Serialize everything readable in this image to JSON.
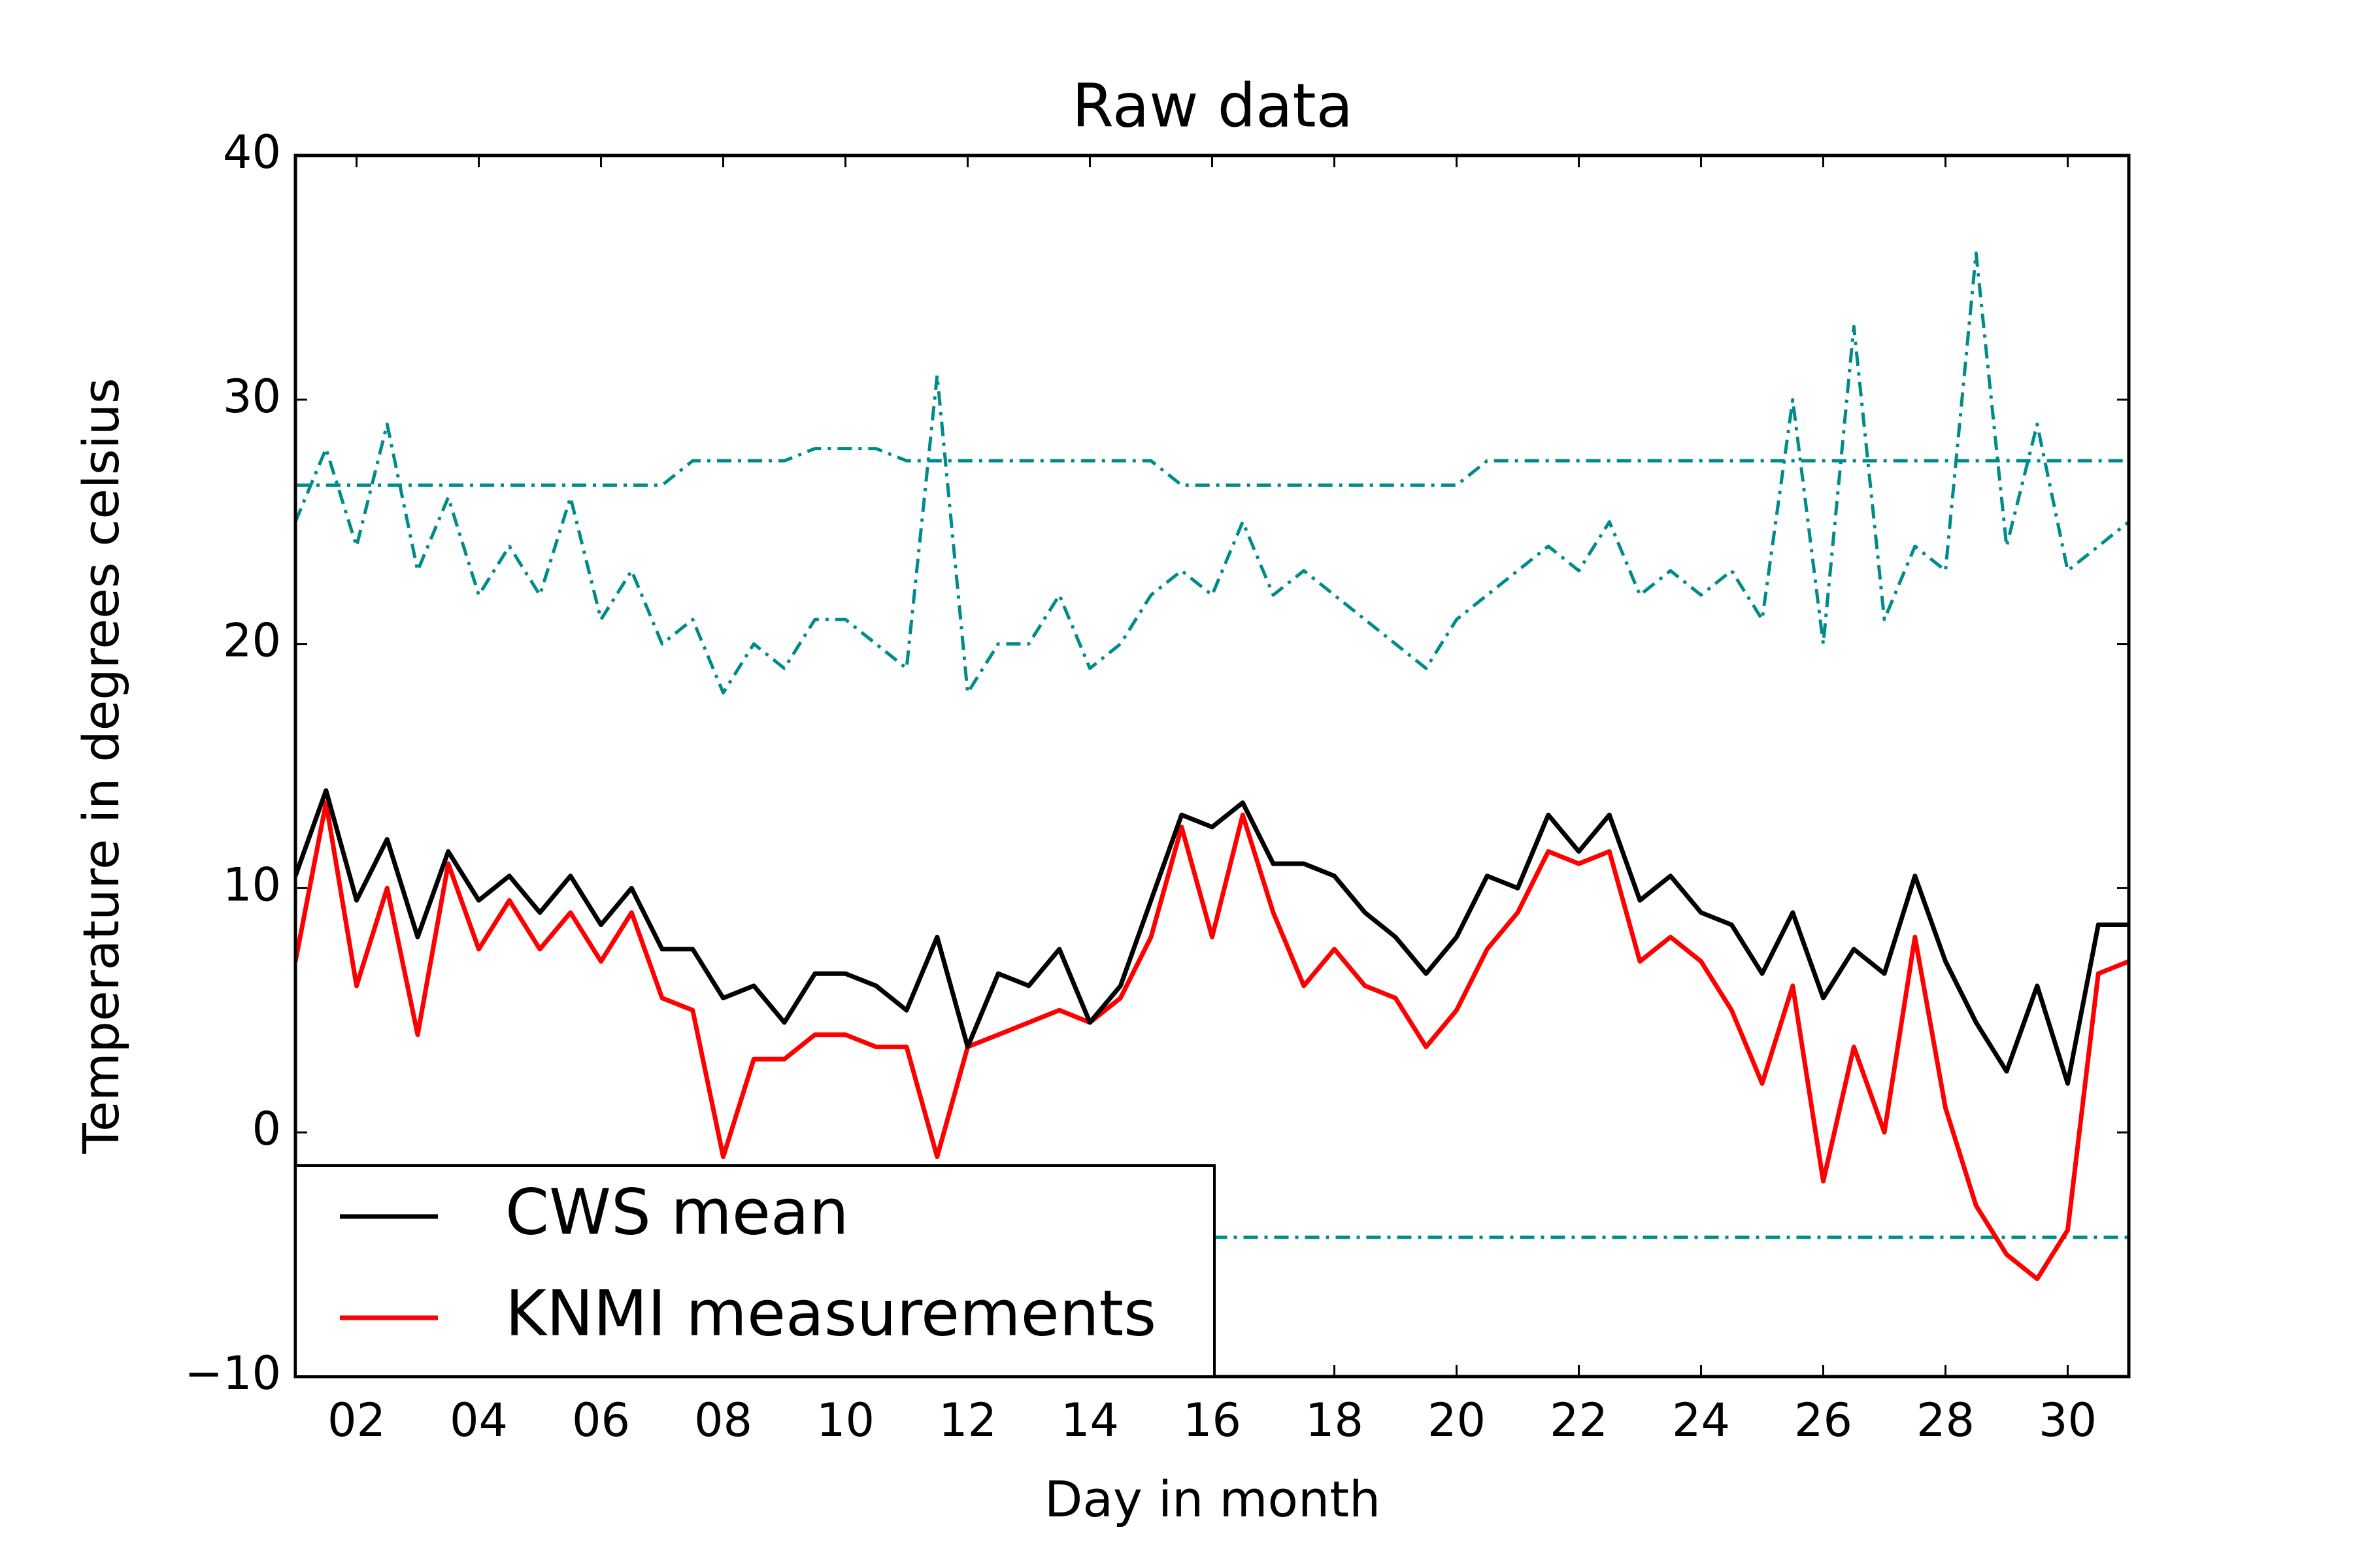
{
  "chart_data": {
    "type": "line",
    "title": "Raw data",
    "xlabel": "Day in month",
    "ylabel": "Temperature in degrees celsius",
    "xlim": [
      1,
      31
    ],
    "ylim": [
      -10,
      40
    ],
    "xticks": [
      {
        "value": 2,
        "label": "02"
      },
      {
        "value": 4,
        "label": "04"
      },
      {
        "value": 6,
        "label": "06"
      },
      {
        "value": 8,
        "label": "08"
      },
      {
        "value": 10,
        "label": "10"
      },
      {
        "value": 12,
        "label": "12"
      },
      {
        "value": 14,
        "label": "14"
      },
      {
        "value": 16,
        "label": "16"
      },
      {
        "value": 18,
        "label": "18"
      },
      {
        "value": 20,
        "label": "20"
      },
      {
        "value": 22,
        "label": "22"
      },
      {
        "value": 24,
        "label": "24"
      },
      {
        "value": 26,
        "label": "26"
      },
      {
        "value": 28,
        "label": "28"
      },
      {
        "value": 30,
        "label": "30"
      }
    ],
    "yticks": [
      {
        "value": -10,
        "label": "−10"
      },
      0,
      10,
      20,
      30,
      40
    ],
    "legend": "lower left",
    "x": [
      1,
      1.5,
      2,
      2.5,
      3,
      3.5,
      4,
      4.5,
      5,
      5.5,
      6,
      6.5,
      7,
      7.5,
      8,
      8.5,
      9,
      9.5,
      10,
      10.5,
      11,
      11.5,
      12,
      12.5,
      13,
      13.5,
      14,
      14.5,
      15,
      15.5,
      16,
      16.5,
      17,
      17.5,
      18,
      18.5,
      19,
      19.5,
      20,
      20.5,
      21,
      21.5,
      22,
      22.5,
      23,
      23.5,
      24,
      24.5,
      25,
      25.5,
      26,
      26.5,
      27,
      27.5,
      28,
      28.5,
      29,
      29.5,
      30,
      30.5,
      31
    ],
    "series": [
      {
        "color": "#008b8b",
        "style": "dashdot",
        "values": [
          26.5,
          26.5,
          26.5,
          26.5,
          26.5,
          26.5,
          26.5,
          26.5,
          26.5,
          26.5,
          26.5,
          26.5,
          26.5,
          27.5,
          27.5,
          27.5,
          27.5,
          28,
          28,
          28,
          27.5,
          27.5,
          27.5,
          27.5,
          27.5,
          27.5,
          27.5,
          27.5,
          27.5,
          26.5,
          26.5,
          26.5,
          26.5,
          26.5,
          26.5,
          26.5,
          26.5,
          26.5,
          26.5,
          27.5,
          27.5,
          27.5,
          27.5,
          27.5,
          27.5,
          27.5,
          27.5,
          27.5,
          27.5,
          27.5,
          27.5,
          27.5,
          27.5,
          27.5,
          27.5,
          27.5,
          27.5,
          27.5,
          27.5,
          27.5,
          27.5
        ]
      },
      {
        "color": "#008b8b",
        "style": "dashdot",
        "values": [
          25,
          28,
          24,
          29,
          23,
          26,
          22,
          24,
          22,
          26,
          21,
          23,
          20,
          21,
          18,
          20,
          19,
          21,
          21,
          20,
          19,
          31,
          18,
          20,
          20,
          22,
          19,
          20,
          22,
          23,
          22,
          25,
          22,
          23,
          22,
          21,
          20,
          19,
          21,
          22,
          23,
          24,
          23,
          25,
          22,
          23,
          22,
          23,
          21,
          30,
          20,
          33,
          21,
          24,
          23,
          36,
          24,
          29,
          23,
          24,
          25
        ]
      },
      {
        "color": "#008b8b",
        "style": "dashdot",
        "values": [
          null,
          null,
          null,
          null,
          null,
          null,
          null,
          null,
          null,
          null,
          null,
          null,
          null,
          null,
          null,
          null,
          null,
          null,
          null,
          null,
          null,
          null,
          null,
          null,
          null,
          null,
          -4.3,
          -4.3,
          -4.3,
          -4.3,
          -4.3,
          -4.3,
          -4.3,
          -4.3,
          -4.3,
          -4.3,
          -4.3,
          -4.3,
          -4.3,
          -4.3,
          -4.3,
          -4.3,
          -4.3,
          -4.3,
          -4.3,
          -4.3,
          -4.3,
          -4.3,
          -4.3,
          -4.3,
          -4.3,
          -4.3,
          -4.3,
          -4.3,
          -4.3,
          -4.3,
          -4.3,
          -4.3,
          -4.3,
          -4.3,
          -4.3
        ]
      },
      {
        "name": "CWS mean",
        "color": "#000000",
        "values": [
          10.5,
          14,
          9.5,
          12,
          8,
          11.5,
          9.5,
          10.5,
          9,
          10.5,
          8.5,
          10,
          7.5,
          7.5,
          5.5,
          6,
          4.5,
          6.5,
          6.5,
          6,
          5,
          8,
          3.5,
          6.5,
          6,
          7.5,
          4.5,
          6,
          9.5,
          13,
          12.5,
          13.5,
          11,
          11,
          10.5,
          9,
          8,
          6.5,
          8,
          10.5,
          10,
          13,
          11.5,
          13,
          9.5,
          10.5,
          9,
          8.5,
          6.5,
          9,
          5.5,
          7.5,
          6.5,
          10.5,
          7,
          4.5,
          2.5,
          6,
          2,
          8.5,
          8.5
        ]
      },
      {
        "name": "KNMI measurements",
        "color": "#ff0000",
        "values": [
          7,
          13.5,
          6,
          10,
          4,
          11,
          7.5,
          9.5,
          7.5,
          9,
          7,
          9,
          5.5,
          5,
          -1,
          3,
          3,
          4,
          4,
          3.5,
          3.5,
          -1,
          3.5,
          4,
          4.5,
          5,
          4.5,
          5.5,
          8,
          12.5,
          8,
          13,
          9,
          6,
          7.5,
          6,
          5.5,
          3.5,
          5,
          7.5,
          9,
          11.5,
          11,
          11.5,
          7,
          8,
          7,
          5,
          2,
          6,
          -2,
          3.5,
          0,
          8,
          1,
          -3,
          -5,
          -6,
          -4,
          6.5,
          7
        ]
      }
    ]
  }
}
